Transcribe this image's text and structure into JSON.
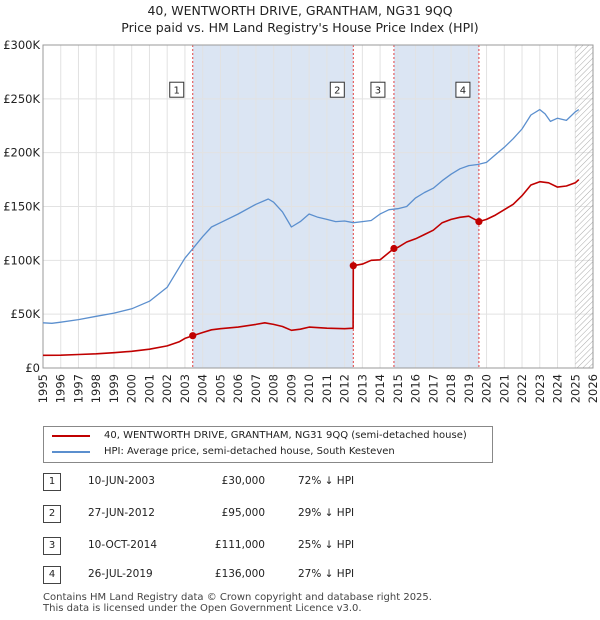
{
  "title_line1": "40, WENTWORTH DRIVE, GRANTHAM, NG31 9QQ",
  "title_line2": "Price paid vs. HM Land Registry's House Price Index (HPI)",
  "colors": {
    "price": "#c00000",
    "hpi": "#5b8fce",
    "shade": "#dbe5f3",
    "vline": "#e04040",
    "hatch": "#aaaaaa"
  },
  "chart_data": {
    "type": "line",
    "xlim": [
      1995,
      2026
    ],
    "ylim": [
      0,
      300000
    ],
    "y_ticks": [
      {
        "value": 0,
        "label": "£0"
      },
      {
        "value": 50000,
        "label": "£50K"
      },
      {
        "value": 100000,
        "label": "£100K"
      },
      {
        "value": 150000,
        "label": "£150K"
      },
      {
        "value": 200000,
        "label": "£200K"
      },
      {
        "value": 250000,
        "label": "£250K"
      },
      {
        "value": 300000,
        "label": "£300K"
      }
    ],
    "x_ticks": [
      "1995",
      "1996",
      "1997",
      "1998",
      "1999",
      "2000",
      "2001",
      "2002",
      "2003",
      "2004",
      "2005",
      "2006",
      "2007",
      "2008",
      "2009",
      "2010",
      "2011",
      "2012",
      "2013",
      "2014",
      "2015",
      "2016",
      "2017",
      "2018",
      "2019",
      "2020",
      "2021",
      "2022",
      "2023",
      "2024",
      "2025",
      "2026"
    ],
    "shaded_ranges": [
      [
        2003.44,
        2012.49
      ],
      [
        2014.78,
        2019.57
      ]
    ],
    "future_from": 2025.0,
    "series": [
      {
        "name": "40, WENTWORTH DRIVE, GRANTHAM, NG31 9QQ (semi-detached house)",
        "key": "price",
        "points": [
          [
            1995.0,
            11800
          ],
          [
            1996.0,
            11900
          ],
          [
            1997.0,
            12500
          ],
          [
            1998.0,
            13200
          ],
          [
            1999.0,
            14200
          ],
          [
            2000.0,
            15500
          ],
          [
            2001.0,
            17500
          ],
          [
            2002.0,
            20500
          ],
          [
            2002.7,
            24500
          ],
          [
            2003.0,
            27500
          ],
          [
            2003.44,
            30000
          ],
          [
            2004.0,
            33000
          ],
          [
            2004.5,
            35500
          ],
          [
            2005.0,
            36500
          ],
          [
            2006.0,
            38000
          ],
          [
            2007.0,
            40500
          ],
          [
            2007.5,
            42000
          ],
          [
            2008.0,
            40500
          ],
          [
            2008.5,
            38500
          ],
          [
            2009.0,
            35000
          ],
          [
            2009.5,
            36000
          ],
          [
            2010.0,
            38000
          ],
          [
            2011.0,
            37000
          ],
          [
            2012.0,
            36500
          ],
          [
            2012.48,
            37000
          ],
          [
            2012.49,
            95000
          ],
          [
            2013.0,
            96500
          ],
          [
            2013.5,
            100000
          ],
          [
            2014.0,
            100500
          ],
          [
            2014.78,
            111000
          ],
          [
            2015.0,
            112000
          ],
          [
            2015.5,
            117000
          ],
          [
            2016.0,
            120000
          ],
          [
            2016.5,
            124000
          ],
          [
            2017.0,
            128000
          ],
          [
            2017.5,
            135000
          ],
          [
            2018.0,
            138000
          ],
          [
            2018.5,
            140000
          ],
          [
            2019.0,
            141000
          ],
          [
            2019.57,
            136000
          ],
          [
            2020.0,
            138000
          ],
          [
            2020.5,
            142000
          ],
          [
            2021.0,
            147000
          ],
          [
            2021.5,
            152000
          ],
          [
            2022.0,
            160000
          ],
          [
            2022.5,
            170000
          ],
          [
            2023.0,
            173000
          ],
          [
            2023.5,
            172000
          ],
          [
            2024.0,
            168000
          ],
          [
            2024.5,
            169000
          ],
          [
            2025.0,
            172000
          ],
          [
            2025.2,
            175000
          ]
        ]
      },
      {
        "name": "HPI: Average price, semi-detached house, South Kesteven",
        "key": "hpi",
        "points": [
          [
            1995.0,
            42000
          ],
          [
            1995.5,
            41500
          ],
          [
            1996.0,
            42500
          ],
          [
            1997.0,
            45000
          ],
          [
            1998.0,
            48000
          ],
          [
            1999.0,
            51000
          ],
          [
            2000.0,
            55000
          ],
          [
            2001.0,
            62000
          ],
          [
            2002.0,
            75000
          ],
          [
            2002.7,
            94000
          ],
          [
            2003.0,
            102000
          ],
          [
            2003.5,
            112000
          ],
          [
            2004.0,
            122000
          ],
          [
            2004.5,
            131000
          ],
          [
            2005.0,
            135000
          ],
          [
            2006.0,
            143000
          ],
          [
            2007.0,
            152000
          ],
          [
            2007.7,
            157000
          ],
          [
            2008.0,
            154000
          ],
          [
            2008.5,
            145000
          ],
          [
            2009.0,
            131000
          ],
          [
            2009.5,
            136000
          ],
          [
            2010.0,
            143000
          ],
          [
            2010.5,
            140000
          ],
          [
            2011.0,
            138000
          ],
          [
            2011.5,
            136000
          ],
          [
            2012.0,
            136500
          ],
          [
            2012.5,
            135000
          ],
          [
            2013.0,
            136000
          ],
          [
            2013.5,
            137000
          ],
          [
            2014.0,
            143000
          ],
          [
            2014.5,
            147000
          ],
          [
            2015.0,
            148000
          ],
          [
            2015.5,
            150000
          ],
          [
            2016.0,
            158000
          ],
          [
            2016.5,
            163000
          ],
          [
            2017.0,
            167000
          ],
          [
            2017.5,
            174000
          ],
          [
            2018.0,
            180000
          ],
          [
            2018.5,
            185000
          ],
          [
            2019.0,
            188000
          ],
          [
            2019.5,
            189000
          ],
          [
            2020.0,
            191000
          ],
          [
            2020.5,
            198000
          ],
          [
            2021.0,
            205000
          ],
          [
            2021.5,
            213000
          ],
          [
            2022.0,
            222000
          ],
          [
            2022.5,
            235000
          ],
          [
            2023.0,
            240000
          ],
          [
            2023.3,
            236000
          ],
          [
            2023.6,
            229000
          ],
          [
            2024.0,
            232000
          ],
          [
            2024.5,
            230000
          ],
          [
            2025.0,
            238000
          ],
          [
            2025.2,
            240000
          ]
        ]
      }
    ],
    "sales": [
      {
        "num": "1",
        "date": "10-JUN-2003",
        "price": "£30,000",
        "hpi": "72% ↓ HPI",
        "x": 2003.44,
        "y": 30000
      },
      {
        "num": "2",
        "date": "27-JUN-2012",
        "price": "£95,000",
        "hpi": "29% ↓ HPI",
        "x": 2012.49,
        "y": 95000
      },
      {
        "num": "3",
        "date": "10-OCT-2014",
        "price": "£111,000",
        "hpi": "25% ↓ HPI",
        "x": 2014.78,
        "y": 111000
      },
      {
        "num": "4",
        "date": "26-JUL-2019",
        "price": "£136,000",
        "hpi": "27% ↓ HPI",
        "x": 2019.57,
        "y": 136000
      }
    ],
    "marker_box_y": 258000
  },
  "legend": {
    "price_label": "40, WENTWORTH DRIVE, GRANTHAM, NG31 9QQ (semi-detached house)",
    "hpi_label": "HPI: Average price, semi-detached house, South Kesteven"
  },
  "footer_line1": "Contains HM Land Registry data © Crown copyright and database right 2025.",
  "footer_line2": "This data is licensed under the Open Government Licence v3.0."
}
